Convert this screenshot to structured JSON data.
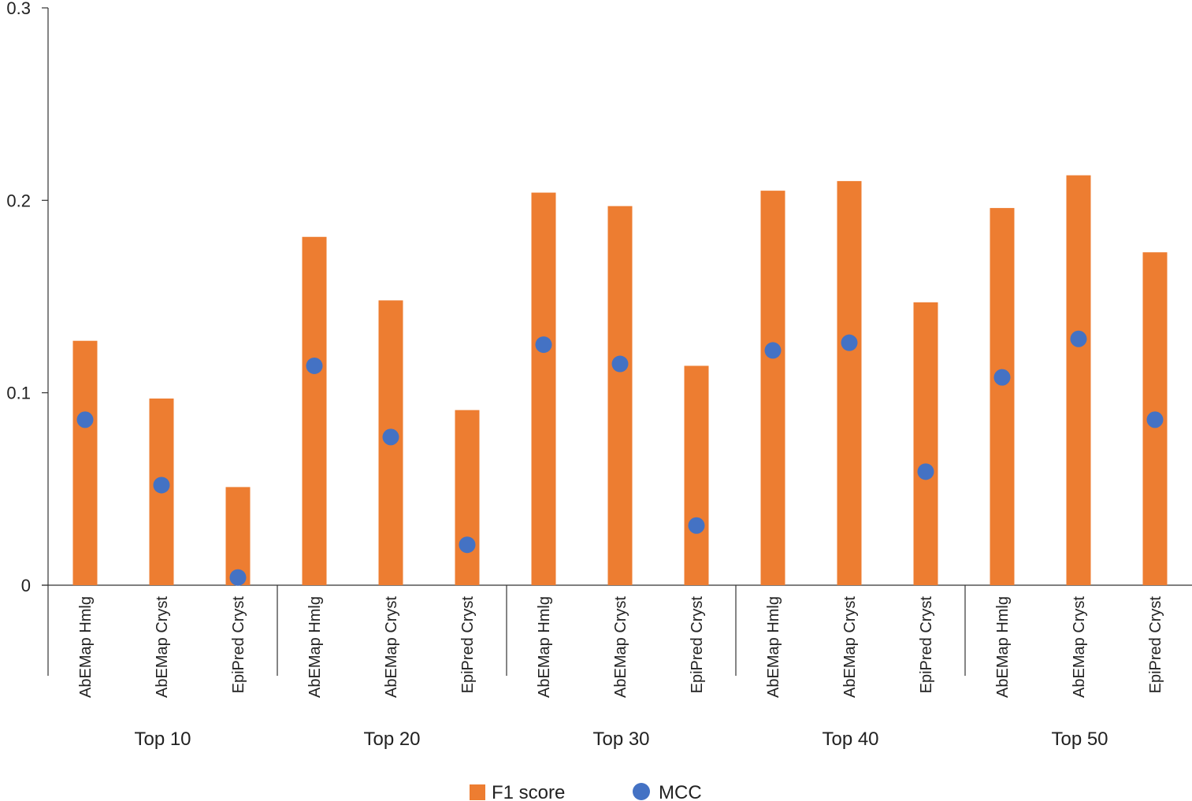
{
  "colors": {
    "f1": "#ED7D31",
    "mcc": "#4472C4",
    "axis": "#333333"
  },
  "chart_data": {
    "type": "bar",
    "title": "",
    "xlabel": "",
    "ylabel": "",
    "ylim": [
      0,
      0.3
    ],
    "yticks": [
      {
        "value": 0,
        "label": "0"
      },
      {
        "value": 0.1,
        "label": "0.1"
      },
      {
        "value": 0.2,
        "label": "0.2"
      },
      {
        "value": 0.3,
        "label": "0.3"
      }
    ],
    "groups": [
      "Top 10",
      "Top 20",
      "Top 30",
      "Top 40",
      "Top 50"
    ],
    "categories": [
      "AbEMap Hmlg",
      "AbEMap Cryst",
      "EpiPred Cryst",
      "AbEMap Hmlg",
      "AbEMap Cryst",
      "EpiPred Cryst",
      "AbEMap Hmlg",
      "AbEMap Cryst",
      "EpiPred Cryst",
      "AbEMap Hmlg",
      "AbEMap Cryst",
      "EpiPred Cryst",
      "AbEMap Hmlg",
      "AbEMap Cryst",
      "EpiPred Cryst"
    ],
    "series": [
      {
        "name": "F1 score",
        "type": "bar",
        "values": [
          0.127,
          0.097,
          0.051,
          0.181,
          0.148,
          0.091,
          0.204,
          0.197,
          0.114,
          0.205,
          0.21,
          0.147,
          0.196,
          0.213,
          0.173
        ]
      },
      {
        "name": "MCC",
        "type": "scatter",
        "values": [
          0.086,
          0.052,
          0.004,
          0.114,
          0.077,
          0.021,
          0.125,
          0.115,
          0.031,
          0.122,
          0.126,
          0.059,
          0.108,
          0.128,
          0.086
        ]
      }
    ],
    "legend": {
      "position": "bottom-center"
    },
    "grid": false
  }
}
